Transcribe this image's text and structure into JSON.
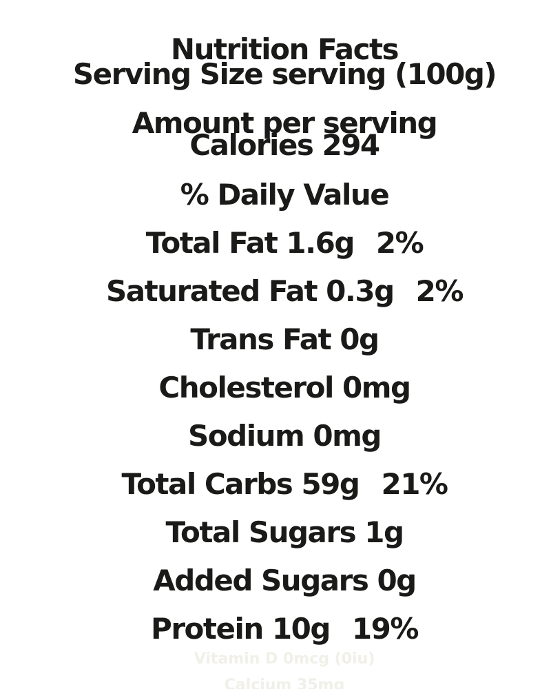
{
  "label": {
    "title": "Nutrition Facts",
    "serving_size": "Serving Size serving (100g)",
    "amount_per_serving": "Amount per serving",
    "calories": {
      "name": "Calories",
      "value": "294"
    },
    "daily_value_header": "% Daily Value",
    "nutrients": [
      {
        "name": "Total Fat",
        "amount": "1.6g",
        "dv": "2%"
      },
      {
        "name": "Saturated Fat",
        "amount": "0.3g",
        "dv": "2%"
      },
      {
        "name": "Trans Fat",
        "amount": "0g",
        "dv": ""
      },
      {
        "name": "Cholesterol",
        "amount": "0mg",
        "dv": ""
      },
      {
        "name": "Sodium",
        "amount": "0mg",
        "dv": ""
      },
      {
        "name": "Total Carbs",
        "amount": "59g",
        "dv": "21%"
      },
      {
        "name": "Total Sugars",
        "amount": "1g",
        "dv": ""
      },
      {
        "name": "Added Sugars",
        "amount": "0g",
        "dv": ""
      },
      {
        "name": "Protein",
        "amount": "10g",
        "dv": "19%"
      }
    ],
    "micronutrients": [
      {
        "name": "Vitamin D",
        "amount": "0mcg (0iu)"
      },
      {
        "name": "Calcium",
        "amount": "35mg"
      }
    ],
    "colors": {
      "text": "#1a1a18",
      "faint_text": "#f0f0e8",
      "background": "#ffffff"
    }
  }
}
